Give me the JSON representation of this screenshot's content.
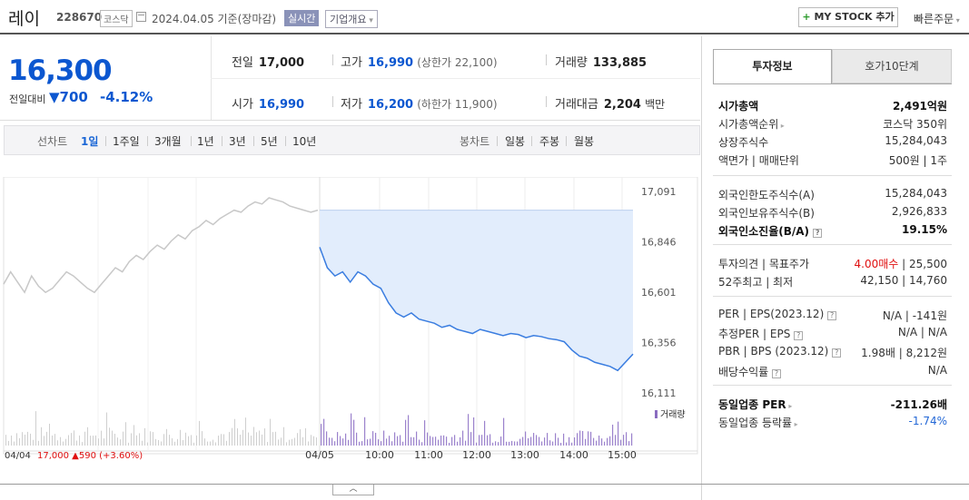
{
  "header": {
    "stock_name": "레이",
    "stock_code": "228670",
    "market": "코스닥",
    "date_text": "2024.04.05  기준(장마감)",
    "realtime_label": "실시간",
    "company_info_label": "기업개요",
    "mystock_label": "MY STOCK 추가",
    "quick_order_label": "빠른주문"
  },
  "summary": {
    "price": "16,300",
    "diff_label": "전일대비",
    "diff_value": "700",
    "rate": "-4.12%",
    "prev_close_label": "전일",
    "prev_close": "17,000",
    "open_label": "시가",
    "open": "16,990",
    "high_label": "고가",
    "high": "16,990",
    "upper_limit": "(상한가 22,100)",
    "low_label": "저가",
    "low": "16,200",
    "lower_limit": "(하한가 11,900)",
    "volume_label": "거래량",
    "volume": "133,885",
    "amount_label": "거래대금",
    "amount": "2,204",
    "amount_unit": "백만"
  },
  "period_bar": {
    "line_label": "선차트",
    "line_periods": [
      "1일",
      "1주일",
      "3개월",
      "1년",
      "3년",
      "5년",
      "10년"
    ],
    "active": "1일",
    "candle_label": "봉차트",
    "candle_periods": [
      "일봉",
      "주봉",
      "월봉"
    ]
  },
  "chart_data": {
    "type": "line",
    "y_ticks": [
      "17,091",
      "16,846",
      "16,601",
      "16,356",
      "16,111"
    ],
    "ylim": [
      16111,
      17091
    ],
    "x_tick_labels": [
      "04/04",
      "04/05",
      "10:00",
      "11:00",
      "12:00",
      "13:00",
      "14:00",
      "15:00"
    ],
    "volume_label": "거래량",
    "prev_day_summary": {
      "date": "04/04",
      "close": "17,000",
      "change": "590",
      "change_pct": "(+3.60%)"
    },
    "series": [
      {
        "values_prev_day": [
          16640,
          16700,
          16650,
          16600,
          16680,
          16630,
          16600,
          16620,
          16660,
          16700,
          16680,
          16650,
          16620,
          16600,
          16640,
          16680,
          16720,
          16700,
          16750,
          16780,
          16760,
          16800,
          16830,
          16810,
          16850,
          16880,
          16860,
          16900,
          16920,
          16950,
          16930,
          16960,
          16980,
          17000,
          16990,
          17020,
          17040,
          17030,
          17060,
          17050,
          17040,
          17020,
          17010,
          17000,
          16990,
          17000
        ],
        "values_today": [
          16820,
          16720,
          16680,
          16700,
          16650,
          16700,
          16680,
          16640,
          16620,
          16550,
          16500,
          16480,
          16500,
          16470,
          16460,
          16450,
          16430,
          16440,
          16420,
          16410,
          16400,
          16420,
          16410,
          16400,
          16390,
          16400,
          16395,
          16380,
          16390,
          16385,
          16375,
          16370,
          16360,
          16320,
          16290,
          16280,
          16260,
          16250,
          16240,
          16220,
          16260,
          16300
        ]
      }
    ]
  },
  "right_panel": {
    "tabs": [
      "투자정보",
      "호가10단계"
    ],
    "rows": [
      {
        "k": "시가총액",
        "v": "2,491억원",
        "bold": true
      },
      {
        "k": "시가총액순위",
        "v": "코스닥 350위",
        "arrow": true
      },
      {
        "k": "상장주식수",
        "v": "15,284,043"
      },
      {
        "k": "액면가 | 매매단위",
        "v": "500원 | 1주"
      },
      {
        "k": "외국인한도주식수(A)",
        "v": "15,284,043"
      },
      {
        "k": "외국인보유주식수(B)",
        "v": "2,926,833"
      },
      {
        "k": "외국인소진율(B/A)",
        "v": "19.15%",
        "bold": true,
        "q": true
      },
      {
        "k": "투자의견 | 목표주가",
        "v_red": "4.00매수",
        "v": " | 25,500"
      },
      {
        "k": "52주최고 | 최저",
        "v": "42,150 | 14,760"
      },
      {
        "k": "PER | EPS(2023.12)",
        "v": "N/A | -141원",
        "q": true
      },
      {
        "k": "추정PER | EPS",
        "v": "N/A | N/A",
        "q": true
      },
      {
        "k": "PBR | BPS (2023.12)",
        "v": "1.98배 | 8,212원",
        "q": true
      },
      {
        "k": "배당수익률",
        "v": "N/A",
        "q": true
      },
      {
        "k": "동일업종 PER",
        "v": "-211.26배",
        "bold": true,
        "arrow": true
      },
      {
        "k": "동일업종 등락률",
        "v_blue": "-1.74%",
        "arrow": true
      }
    ]
  }
}
